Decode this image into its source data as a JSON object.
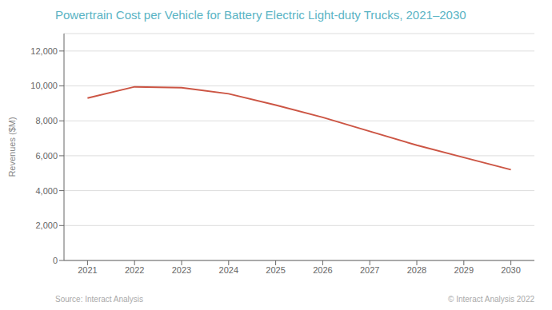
{
  "chart_data": {
    "type": "line",
    "title": "Powertrain Cost per Vehicle for Battery Electric Light-duty Trucks, 2021–2030",
    "y_label": "Revenues ($M)",
    "annotations": [
      "Source: Interact Analysis",
      "© Interact Analysis 2022"
    ],
    "x": [
      2021,
      2022,
      2023,
      2024,
      2025,
      2026,
      2027,
      2028,
      2029,
      2030
    ],
    "values": [
      9300,
      9950,
      9900,
      9550,
      8900,
      8200,
      7400,
      6600,
      5900,
      5200
    ],
    "color": "#cc5544",
    "xlim": [
      2020.5,
      2030.5
    ],
    "xticks": [
      2021,
      2022,
      2023,
      2024,
      2025,
      2026,
      2027,
      2028,
      2029,
      2030
    ],
    "ylim": [
      0,
      13000
    ],
    "yticks": [
      0,
      {
        "value": 2000,
        "label": "2,000"
      },
      {
        "value": 4000,
        "label": "4,000"
      },
      {
        "value": 6000,
        "label": "6,000"
      },
      {
        "value": 8000,
        "label": "8,000"
      },
      {
        "value": 10000,
        "label": "10,000"
      },
      {
        "value": 12000,
        "label": "12,000"
      }
    ],
    "grid": true
  }
}
